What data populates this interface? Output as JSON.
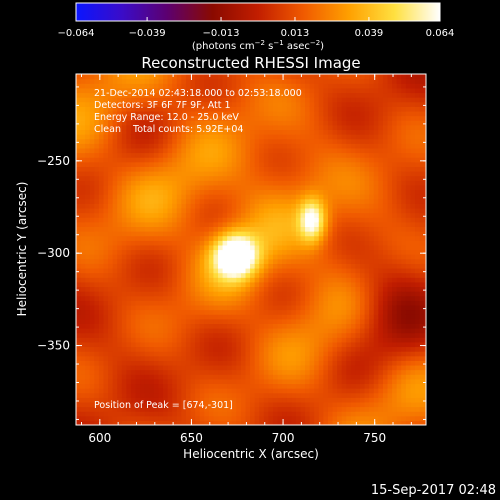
{
  "chart_data": {
    "type": "heatmap",
    "title": "Reconstructed RHESSI Image",
    "xlabel": "Heliocentric X (arcsec)",
    "ylabel": "Heliocentric Y (arcsec)",
    "xlim": [
      587,
      778
    ],
    "ylim": [
      -393,
      -203
    ],
    "x_ticks": [
      600,
      650,
      700,
      750
    ],
    "x_tick_labels": [
      "600",
      "650",
      "700",
      "750"
    ],
    "y_ticks": [
      -250,
      -300,
      -350
    ],
    "y_tick_labels": [
      "−250",
      "−300",
      "−350"
    ],
    "colorbar": {
      "min": -0.064,
      "max": 0.064,
      "ticks": [
        -0.064,
        -0.039,
        -0.013,
        0.013,
        0.039,
        0.064
      ],
      "tick_labels": [
        "−0.064",
        "−0.039",
        "−0.013",
        "0.013",
        "0.039",
        "0.064"
      ],
      "unit_text": "(photons cm",
      "unit_sup1": "−2",
      "unit_mid": " s",
      "unit_sup2": "−1",
      "unit_mid2": " asec",
      "unit_sup3": "−2",
      "unit_end": ")",
      "colors": [
        "#0a16ff",
        "#3a0cc9",
        "#5c0070",
        "#8a0a00",
        "#c21e00",
        "#f05a00",
        "#ffa000",
        "#ffe040",
        "#ffffff"
      ]
    },
    "sources": [
      {
        "x": 674,
        "y": -301,
        "peak": 0.064
      },
      {
        "x": 716,
        "y": -282,
        "peak": 0.045
      }
    ],
    "annotations": [
      "21-Dec-2014 02:43:18.000 to 02:53:18.000",
      "Detectors: 3F 6F 7F 9F, Att 1",
      "Energy Range: 12.0 - 25.0 keV",
      "Clean    Total counts: 5.92E+04"
    ],
    "peak_label": "Position of Peak = [674,-301]"
  },
  "footer_timestamp": "15-Sep-2017 02:48"
}
